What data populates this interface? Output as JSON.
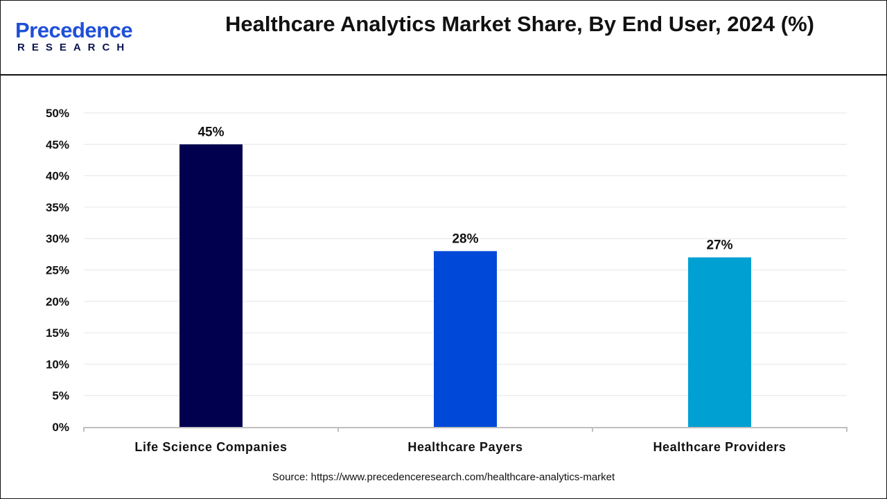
{
  "logo": {
    "line1": "Precedence",
    "line2": "RESEARCH"
  },
  "title": "Healthcare Analytics Market Share, By End User, 2024 (%)",
  "source": "Source: https://www.precedenceresearch.com/healthcare-analytics-market",
  "chart_data": {
    "type": "bar",
    "title": "Healthcare Analytics Market Share, By End User, 2024 (%)",
    "categories": [
      "Life Science Companies",
      "Healthcare Payers",
      "Healthcare Providers"
    ],
    "values": [
      45,
      28,
      27
    ],
    "data_labels": [
      "45%",
      "28%",
      "27%"
    ],
    "colors": [
      "#00004f",
      "#0049d8",
      "#00a0d2"
    ],
    "ylim": [
      0,
      50
    ],
    "yticks": [
      0,
      5,
      10,
      15,
      20,
      25,
      30,
      35,
      40,
      45,
      50
    ],
    "ytick_labels": [
      "0%",
      "5%",
      "10%",
      "15%",
      "20%",
      "25%",
      "30%",
      "35%",
      "40%",
      "45%",
      "50%"
    ],
    "xlabel": "",
    "ylabel": "",
    "grid": true,
    "legend": "none"
  }
}
